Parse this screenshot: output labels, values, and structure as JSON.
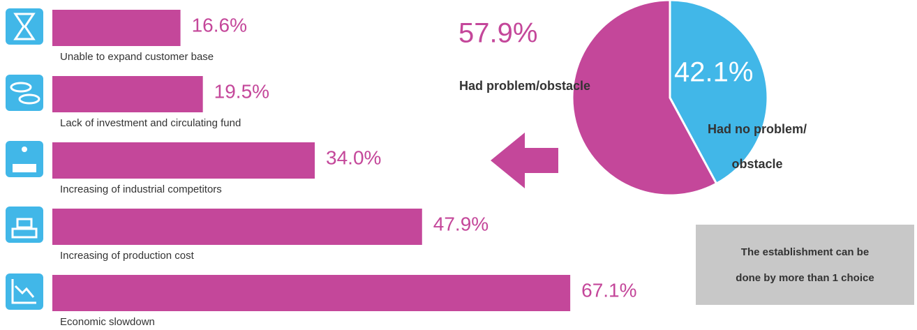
{
  "chart_data": [
    {
      "type": "bar",
      "orientation": "horizontal",
      "color": "#c4479a",
      "categories": [
        "Unable to expand customer base",
        "Lack of investment and circulating fund",
        "Increasing of industrial competitors",
        "Increasing of production cost",
        "Economic slowdown"
      ],
      "values": [
        16.6,
        19.5,
        34.0,
        47.9,
        67.1
      ],
      "value_labels": [
        "16.6%",
        "19.5%",
        "34.0%",
        "47.9%",
        "67.1%"
      ]
    },
    {
      "type": "pie",
      "categories": [
        "Had problem/obstacle",
        "Had no problem/ obstacle"
      ],
      "values": [
        57.9,
        42.1
      ],
      "value_labels": [
        "57.9%",
        "42.1%"
      ],
      "colors": [
        "#c4479a",
        "#41b7e8"
      ]
    }
  ],
  "note": "The establishment can be done by more than 1 choice"
}
